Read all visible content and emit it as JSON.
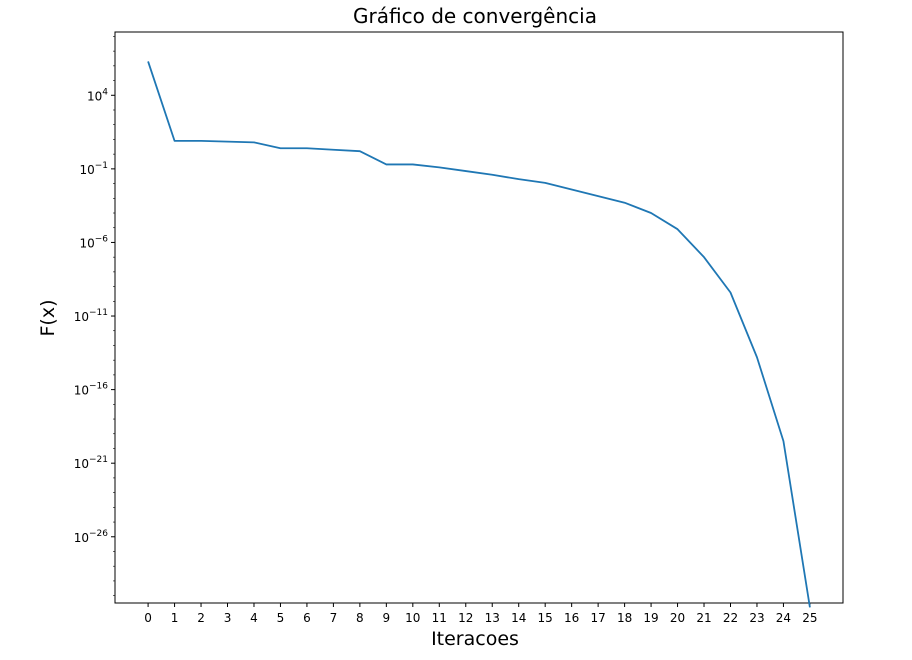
{
  "chart_data": {
    "type": "line",
    "title": "Gráfico de convergência",
    "xlabel": "Iteracoes",
    "ylabel": "F(x)",
    "y_scale": "log",
    "grid": false,
    "x_ticks": [
      0,
      1,
      2,
      3,
      4,
      5,
      6,
      7,
      8,
      9,
      10,
      11,
      12,
      13,
      14,
      15,
      16,
      17,
      18,
      19,
      20,
      21,
      22,
      23,
      24,
      25
    ],
    "y_tick_exponents": [
      4,
      -1,
      -6,
      -11,
      -16,
      -21,
      -26
    ],
    "xlim": [
      -1.25,
      26.25
    ],
    "ylim_exponent": [
      -30.5,
      8.3
    ],
    "series": [
      {
        "color": "#1f77b4",
        "x": [
          0,
          1,
          2,
          3,
          4,
          5,
          6,
          7,
          8,
          9,
          10,
          11,
          12,
          13,
          14,
          15,
          16,
          17,
          18,
          19,
          20,
          21,
          22,
          23,
          24,
          25
        ],
        "y_log10": [
          6.3,
          0.9,
          0.9,
          0.85,
          0.8,
          0.4,
          0.4,
          0.3,
          0.2,
          -0.7,
          -0.7,
          -0.9,
          -1.15,
          -1.4,
          -1.7,
          -1.95,
          -2.4,
          -2.85,
          -3.3,
          -4.0,
          -5.1,
          -7.0,
          -9.4,
          -13.8,
          -19.5,
          -30.8
        ]
      }
    ]
  }
}
